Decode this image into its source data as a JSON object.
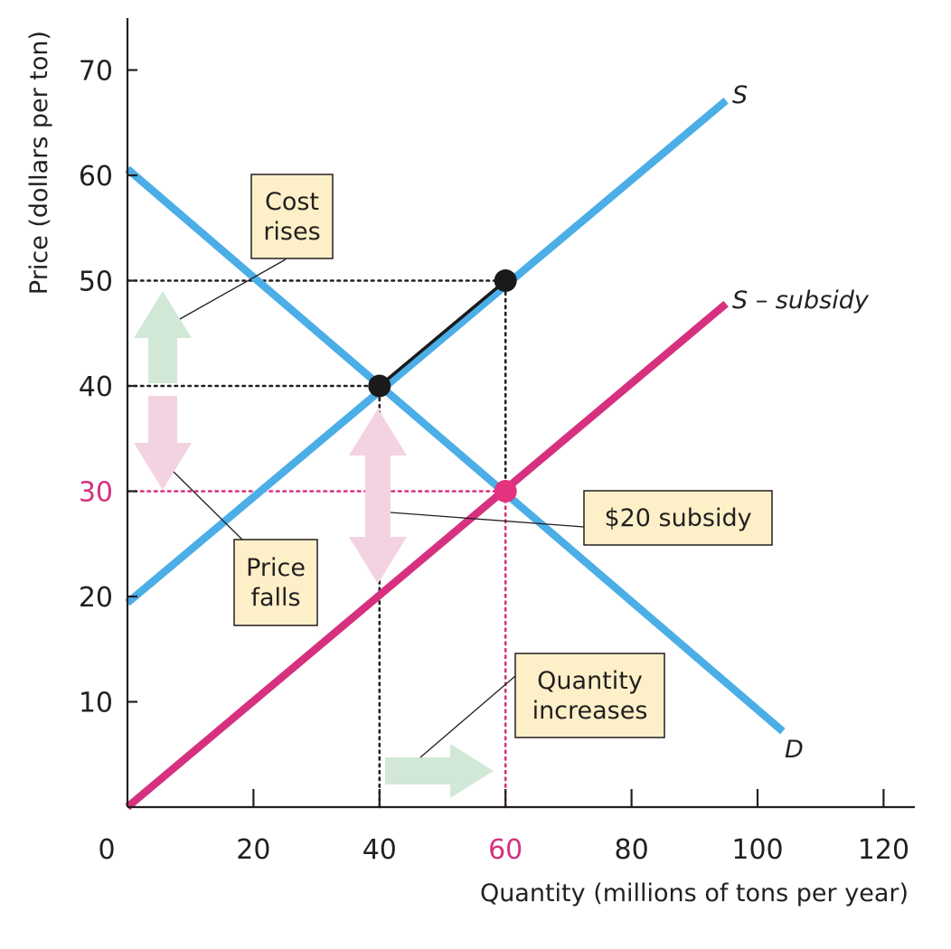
{
  "chart_data": {
    "type": "line",
    "title": "",
    "xlabel": "Quantity (millions of tons per year)",
    "ylabel": "Price (dollars per ton)",
    "xlim": [
      0,
      125
    ],
    "ylim": [
      0,
      75
    ],
    "x_ticks": [
      0,
      20,
      40,
      60,
      80,
      100,
      120
    ],
    "y_ticks": [
      10,
      20,
      30,
      40,
      50,
      60,
      70
    ],
    "highlight_x_tick": 60,
    "highlight_y_tick": 30,
    "grid": false,
    "colors": {
      "supply": "#4baee6",
      "demand": "#4baee6",
      "supply_minus_subsidy": "#d6317f",
      "point_black": "#1a1a1a",
      "point_pink": "#e5327f",
      "arrow_green": "#d2e8d6",
      "arrow_pink": "#f3d3e1",
      "callout_fill": "#fdf0c8",
      "axis": "#231f20"
    },
    "series": [
      {
        "key": "supply",
        "name": "S",
        "points": [
          [
            0,
            19.4
          ],
          [
            95,
            67.1
          ]
        ]
      },
      {
        "key": "supply_minus_subsidy",
        "name": "S – subsidy",
        "points": [
          [
            0,
            0
          ],
          [
            95,
            47.8
          ]
        ]
      },
      {
        "key": "demand",
        "name": "D",
        "points": [
          [
            0,
            60.6
          ],
          [
            104,
            7.2
          ]
        ]
      }
    ],
    "points": [
      {
        "key": "equilibrium",
        "x": 40,
        "y": 40,
        "color": "black"
      },
      {
        "key": "subsidy_supply_price",
        "x": 60,
        "y": 50,
        "color": "black"
      },
      {
        "key": "subsidy_market_price",
        "x": 60,
        "y": 30,
        "color": "pink"
      }
    ],
    "reference_lines": [
      {
        "key": "price-50-guide",
        "from": [
          0,
          50
        ],
        "to": [
          60,
          50
        ],
        "style": "black-dotted"
      },
      {
        "key": "price-40-guide",
        "from": [
          0,
          40
        ],
        "to": [
          40,
          40
        ],
        "style": "black-dotted"
      },
      {
        "key": "price-30-guide",
        "from": [
          0,
          30
        ],
        "to": [
          60,
          30
        ],
        "style": "pink-dotted"
      },
      {
        "key": "quantity-40-guide",
        "from": [
          40,
          0
        ],
        "to": [
          40,
          40
        ],
        "style": "black-dotted"
      },
      {
        "key": "quantity-60-guide-upper",
        "from": [
          60,
          30
        ],
        "to": [
          60,
          50
        ],
        "style": "black-dotted"
      },
      {
        "key": "quantity-60-guide-lower",
        "from": [
          60,
          0
        ],
        "to": [
          60,
          30
        ],
        "style": "pink-dotted"
      }
    ],
    "annotations": [
      {
        "key": "cost-rises",
        "lines": [
          "Cost",
          "rises"
        ]
      },
      {
        "key": "price-falls",
        "lines": [
          "Price",
          "falls"
        ]
      },
      {
        "key": "subsidy",
        "lines": [
          "$20 subsidy"
        ]
      },
      {
        "key": "quantity-increases",
        "lines": [
          "Quantity",
          "increases"
        ]
      }
    ]
  }
}
